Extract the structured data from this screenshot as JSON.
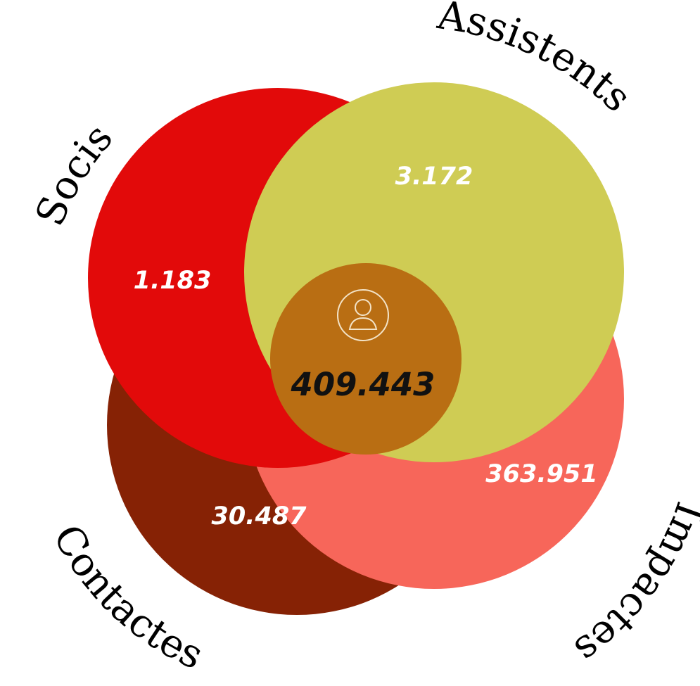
{
  "colors": {
    "socis": "#e20a0a",
    "assistents": "#cfcc54",
    "impactes": "#f7665a",
    "contactes": "#862205",
    "center": "#b96e13"
  },
  "sections": {
    "socis": {
      "label": "Socis",
      "value": "1.183"
    },
    "assistents": {
      "label": "Assistents",
      "value": "3.172"
    },
    "impactes": {
      "label": "Impactes",
      "value": "363.951"
    },
    "contactes": {
      "label": "Contactes",
      "value": "30.487"
    }
  },
  "center": {
    "icon": "user-circle-icon",
    "total": "409.443"
  }
}
